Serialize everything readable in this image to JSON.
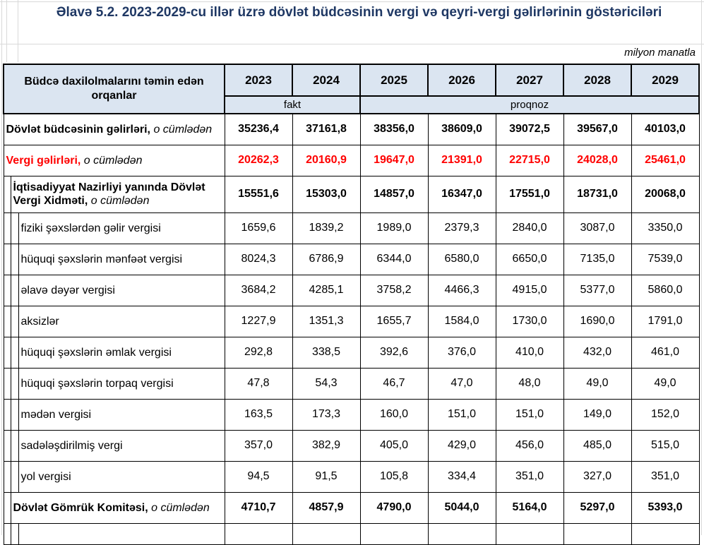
{
  "title": "Əlavə 5.2. 2023-2029-cu illər üzrə dövlət büdcəsinin vergi və qeyri-vergi gəlirlərinin göstəriciləri",
  "unit_note": "milyon manatla",
  "colors": {
    "title_navy": "#1f3864",
    "header_fill": "#dbe5f1",
    "accent_red": "#ff0000"
  },
  "table": {
    "header": {
      "org_label": "Büdcə daxilolmalarını təmin edən orqanlar",
      "years": [
        "2023",
        "2024",
        "2025",
        "2026",
        "2027",
        "2028",
        "2029"
      ],
      "fact_label": "fakt",
      "forecast_label": "proqnoz"
    },
    "rows": [
      {
        "label": "Dövlət büdcəsinin gəlirləri,",
        "suffix": "o cümlədən",
        "indent": 0,
        "bold": true,
        "red": false,
        "values": [
          "35236,4",
          "37161,8",
          "38356,0",
          "38609,0",
          "39072,5",
          "39567,0",
          "40103,0"
        ]
      },
      {
        "label": "Vergi gəlirləri,",
        "suffix": "o cümlədən",
        "indent": 0,
        "bold": true,
        "red": true,
        "values": [
          "20262,3",
          "20160,9",
          "19647,0",
          "21391,0",
          "22715,0",
          "24028,0",
          "25461,0"
        ]
      },
      {
        "label": "İqtisadiyyat Nazirliyi yanında Dövlət Vergi Xidməti,",
        "suffix": "o cümlədən",
        "indent": 1,
        "bold": true,
        "red": false,
        "tall": true,
        "values": [
          "15551,6",
          "15303,0",
          "14857,0",
          "16347,0",
          "17551,0",
          "18731,0",
          "20068,0"
        ]
      },
      {
        "label": "fiziki şəxslərdən gəlir vergisi",
        "indent": 2,
        "bold": false,
        "red": false,
        "values": [
          "1659,6",
          "1839,2",
          "1989,0",
          "2379,3",
          "2840,0",
          "3087,0",
          "3350,0"
        ]
      },
      {
        "label": "hüquqi şəxslərin mənfəət vergisi",
        "indent": 2,
        "bold": false,
        "red": false,
        "values": [
          "8024,3",
          "6786,9",
          "6344,0",
          "6580,0",
          "6650,0",
          "7135,0",
          "7539,0"
        ]
      },
      {
        "label": "əlavə dəyər vergisi",
        "indent": 2,
        "bold": false,
        "red": false,
        "values": [
          "3684,2",
          "4285,1",
          "3758,2",
          "4466,3",
          "4915,0",
          "5377,0",
          "5860,0"
        ]
      },
      {
        "label": "aksizlər",
        "indent": 2,
        "bold": false,
        "red": false,
        "values": [
          "1227,9",
          "1351,3",
          "1655,7",
          "1584,0",
          "1730,0",
          "1690,0",
          "1791,0"
        ]
      },
      {
        "label": "hüquqi şəxslərin əmlak vergisi",
        "indent": 2,
        "bold": false,
        "red": false,
        "values": [
          "292,8",
          "338,5",
          "392,6",
          "376,0",
          "410,0",
          "432,0",
          "461,0"
        ]
      },
      {
        "label": "hüquqi şəxslərin torpaq vergisi",
        "indent": 2,
        "bold": false,
        "red": false,
        "values": [
          "47,8",
          "54,3",
          "46,7",
          "47,0",
          "48,0",
          "49,0",
          "49,0"
        ]
      },
      {
        "label": "mədən vergisi",
        "indent": 2,
        "bold": false,
        "red": false,
        "values": [
          "163,5",
          "173,3",
          "160,0",
          "151,0",
          "151,0",
          "149,0",
          "152,0"
        ]
      },
      {
        "label": "sadələşdirilmiş  vergi",
        "indent": 2,
        "bold": false,
        "red": false,
        "values": [
          "357,0",
          "382,9",
          "405,0",
          "429,0",
          "456,0",
          "485,0",
          "515,0"
        ]
      },
      {
        "label": "yol vergisi",
        "indent": 2,
        "bold": false,
        "red": false,
        "values": [
          "94,5",
          "91,5",
          "105,8",
          "334,4",
          "351,0",
          "327,0",
          "351,0"
        ]
      },
      {
        "label": "Dövlət Gömrük Komitəsi,",
        "suffix": "o cümlədən",
        "indent": 1,
        "bold": true,
        "red": false,
        "values": [
          "4710,7",
          "4857,9",
          "4790,0",
          "5044,0",
          "5164,0",
          "5297,0",
          "5393,0"
        ]
      },
      {
        "label": "",
        "indent": 2,
        "bold": false,
        "red": false,
        "partial": true,
        "values": [
          "",
          "",
          "",
          "",
          "",
          "",
          ""
        ]
      }
    ]
  }
}
